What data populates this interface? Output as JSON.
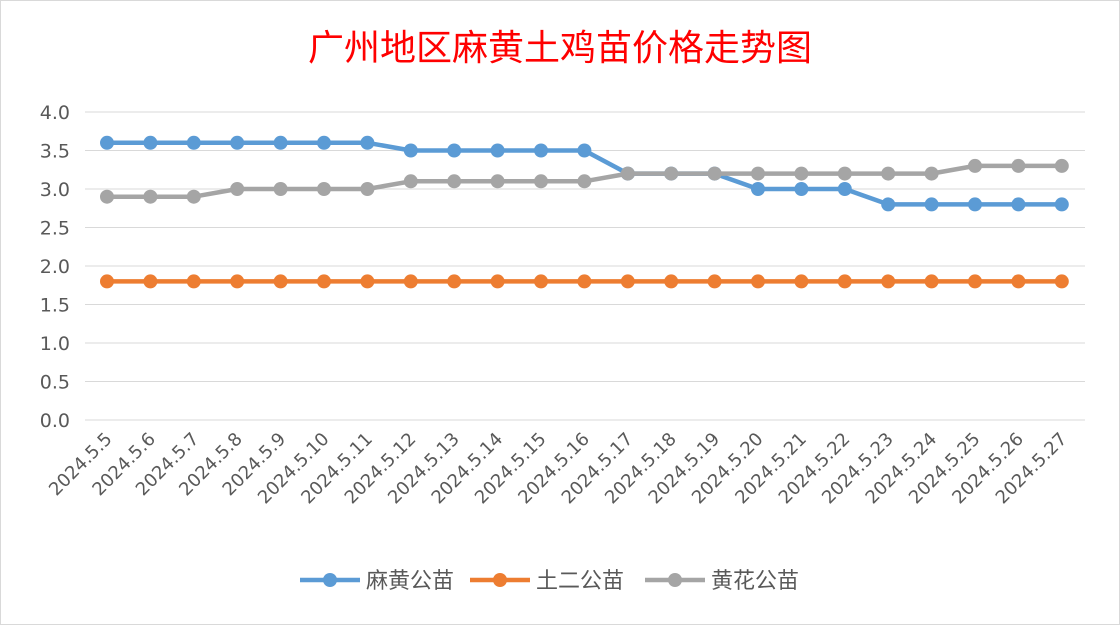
{
  "chart_data": {
    "type": "line",
    "title": "广州地区麻黄土鸡苗价格走势图",
    "title_color": "#FF0000",
    "xlabel": "",
    "ylabel": "",
    "ylim": [
      0,
      4
    ],
    "y_ticks": [
      "0.0",
      "0.5",
      "1.0",
      "1.5",
      "2.0",
      "2.5",
      "3.0",
      "3.5",
      "4.0"
    ],
    "grid": true,
    "legend_position": "bottom",
    "categories": [
      "2024.5.5",
      "2024.5.6",
      "2024.5.7",
      "2024.5.8",
      "2024.5.9",
      "2024.5.10",
      "2024.5.11",
      "2024.5.12",
      "2024.5.13",
      "2024.5.14",
      "2024.5.15",
      "2024.5.16",
      "2024.5.17",
      "2024.5.18",
      "2024.5.19",
      "2024.5.20",
      "2024.5.21",
      "2024.5.22",
      "2024.5.23",
      "2024.5.24",
      "2024.5.25",
      "2024.5.26",
      "2024.5.27"
    ],
    "series": [
      {
        "name": "麻黄公苗",
        "color": "#5B9BD5",
        "values": [
          3.6,
          3.6,
          3.6,
          3.6,
          3.6,
          3.6,
          3.6,
          3.5,
          3.5,
          3.5,
          3.5,
          3.5,
          3.2,
          3.2,
          3.2,
          3.0,
          3.0,
          3.0,
          2.8,
          2.8,
          2.8,
          2.8,
          2.8
        ]
      },
      {
        "name": "土二公苗",
        "color": "#ED7D31",
        "values": [
          1.8,
          1.8,
          1.8,
          1.8,
          1.8,
          1.8,
          1.8,
          1.8,
          1.8,
          1.8,
          1.8,
          1.8,
          1.8,
          1.8,
          1.8,
          1.8,
          1.8,
          1.8,
          1.8,
          1.8,
          1.8,
          1.8,
          1.8
        ]
      },
      {
        "name": "黄花公苗",
        "color": "#A5A5A5",
        "values": [
          2.9,
          2.9,
          2.9,
          3.0,
          3.0,
          3.0,
          3.0,
          3.1,
          3.1,
          3.1,
          3.1,
          3.1,
          3.2,
          3.2,
          3.2,
          3.2,
          3.2,
          3.2,
          3.2,
          3.2,
          3.3,
          3.3,
          3.3
        ]
      }
    ]
  }
}
